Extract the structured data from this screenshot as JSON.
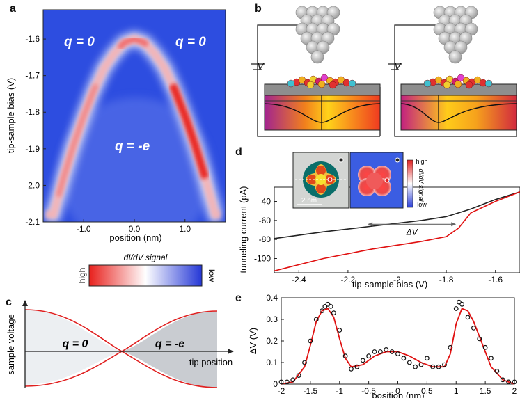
{
  "panel_letters": {
    "a": "a",
    "b": "b",
    "c": "c",
    "d": "d",
    "e": "e"
  },
  "panel_a": {
    "y_label": "tip-sample bias (V)",
    "x_label": "position (nm)",
    "y_ticks": [
      "-1.6",
      "-1.7",
      "-1.8",
      "-1.9",
      "-2.0",
      "-2.1"
    ],
    "x_ticks": [
      "-1.0",
      "0.0",
      "1.0"
    ],
    "annotation_left": "q = 0",
    "annotation_right": "q = 0",
    "annotation_center": "q = -e",
    "colorbar_title": "dI/dV signal",
    "colorbar_high": "high",
    "colorbar_low": "low",
    "colors": {
      "background": "#2f4fe0",
      "peak": "#e8201c",
      "mid": "#ffffff"
    }
  },
  "panel_b": {
    "voltage_label": "V",
    "schematic_left": "tip above substrate, charge neutral",
    "schematic_right": "tip above substrate, charged"
  },
  "panel_c": {
    "y_label": "sample voltage",
    "x_label": "tip position",
    "region_left": "q = 0",
    "region_right": "q = -e",
    "colors": {
      "left": "#eceff2",
      "right": "#c9ccd1",
      "curve": "#e02020"
    }
  },
  "panel_d": {
    "y_label": "tunneling current (pA)",
    "x_label": "tip-sample bias (V)",
    "y_ticks": [
      "-40",
      "-60",
      "-80",
      "-100"
    ],
    "x_ticks": [
      "-2.4",
      "-2.2",
      "-2",
      "-1.8",
      "-1.6"
    ],
    "arrow_label": "ΔV",
    "scale_bar": "2 nm",
    "inset_colorbar_title": "dI/dV signal",
    "inset_colorbar_high": "high",
    "inset_colorbar_low": "low"
  },
  "panel_e": {
    "y_label": "ΔV (V)",
    "x_label": "position (nm)",
    "y_ticks": [
      "0",
      "0.1",
      "0.2",
      "0.3",
      "0.4"
    ],
    "x_ticks": [
      "-2",
      "-1.5",
      "-1",
      "-0.5",
      "0",
      "0.5",
      "1",
      "1.5",
      "2"
    ]
  },
  "chart_data": [
    {
      "type": "line",
      "panel": "d",
      "title": "",
      "xlabel": "tip-sample bias (V)",
      "ylabel": "tunneling current (pA)",
      "xlim": [
        -2.5,
        -1.5
      ],
      "ylim": [
        -115,
        -25
      ],
      "series": [
        {
          "name": "black",
          "color": "#222222",
          "x": [
            -2.5,
            -2.3,
            -2.1,
            -1.9,
            -1.8,
            -1.7,
            -1.6,
            -1.5
          ],
          "y": [
            -79,
            -72,
            -66,
            -60,
            -56,
            -48,
            -38,
            -30
          ]
        },
        {
          "name": "red",
          "color": "#e01010",
          "x": [
            -2.5,
            -2.3,
            -2.1,
            -1.9,
            -1.8,
            -1.75,
            -1.7,
            -1.6,
            -1.5
          ],
          "y": [
            -113,
            -100,
            -90,
            -82,
            -77,
            -68,
            -52,
            -40,
            -30
          ]
        }
      ],
      "annotation": {
        "label": "ΔV",
        "x_from": -2.12,
        "x_to": -1.76,
        "y": -64
      }
    },
    {
      "type": "scatter",
      "panel": "e",
      "title": "",
      "xlabel": "position (nm)",
      "ylabel": "ΔV (V)",
      "xlim": [
        -2,
        2
      ],
      "ylim": [
        0,
        0.4
      ],
      "series": [
        {
          "name": "data",
          "marker": "open-circle",
          "x": [
            -2.0,
            -1.9,
            -1.8,
            -1.7,
            -1.6,
            -1.5,
            -1.4,
            -1.3,
            -1.25,
            -1.2,
            -1.15,
            -1.1,
            -1.0,
            -0.9,
            -0.8,
            -0.7,
            -0.6,
            -0.5,
            -0.4,
            -0.3,
            -0.2,
            -0.1,
            0.0,
            0.1,
            0.2,
            0.3,
            0.4,
            0.5,
            0.6,
            0.7,
            0.8,
            0.9,
            1.0,
            1.05,
            1.1,
            1.2,
            1.3,
            1.4,
            1.5,
            1.6,
            1.7,
            1.8,
            1.9,
            2.0
          ],
          "y": [
            0.01,
            0.01,
            0.02,
            0.04,
            0.1,
            0.2,
            0.3,
            0.34,
            0.36,
            0.37,
            0.36,
            0.33,
            0.25,
            0.13,
            0.07,
            0.08,
            0.11,
            0.13,
            0.15,
            0.15,
            0.16,
            0.15,
            0.14,
            0.12,
            0.1,
            0.08,
            0.09,
            0.12,
            0.08,
            0.08,
            0.09,
            0.17,
            0.35,
            0.38,
            0.37,
            0.31,
            0.26,
            0.21,
            0.17,
            0.12,
            0.06,
            0.02,
            0.01,
            0.01
          ]
        },
        {
          "name": "fit",
          "marker": "line",
          "color": "#e01010",
          "x": [
            -2.0,
            -1.8,
            -1.6,
            -1.5,
            -1.4,
            -1.3,
            -1.2,
            -1.1,
            -1.0,
            -0.9,
            -0.8,
            -0.6,
            -0.4,
            -0.2,
            0.0,
            0.2,
            0.4,
            0.6,
            0.8,
            0.9,
            1.0,
            1.1,
            1.2,
            1.3,
            1.4,
            1.5,
            1.6,
            1.8,
            2.0
          ],
          "y": [
            0.0,
            0.01,
            0.08,
            0.18,
            0.29,
            0.34,
            0.35,
            0.31,
            0.21,
            0.12,
            0.08,
            0.09,
            0.13,
            0.15,
            0.15,
            0.13,
            0.1,
            0.08,
            0.08,
            0.14,
            0.28,
            0.35,
            0.34,
            0.29,
            0.22,
            0.15,
            0.08,
            0.02,
            0.0
          ]
        }
      ]
    },
    {
      "type": "heatmap",
      "panel": "a",
      "xlabel": "position (nm)",
      "ylabel": "tip-sample bias (V)",
      "xlim": [
        -1.8,
        1.8
      ],
      "ylim": [
        -2.1,
        -1.52
      ],
      "ridge": {
        "x": [
          -1.6,
          -1.4,
          -1.2,
          -1.0,
          -0.8,
          -0.6,
          -0.4,
          -0.2,
          0.0,
          0.2,
          0.4,
          0.6,
          0.8,
          1.0,
          1.2,
          1.4,
          1.6
        ],
        "y": [
          -2.08,
          -1.98,
          -1.89,
          -1.81,
          -1.74,
          -1.68,
          -1.64,
          -1.61,
          -1.6,
          -1.61,
          -1.64,
          -1.68,
          -1.74,
          -1.81,
          -1.89,
          -1.98,
          -2.08
        ]
      }
    }
  ]
}
